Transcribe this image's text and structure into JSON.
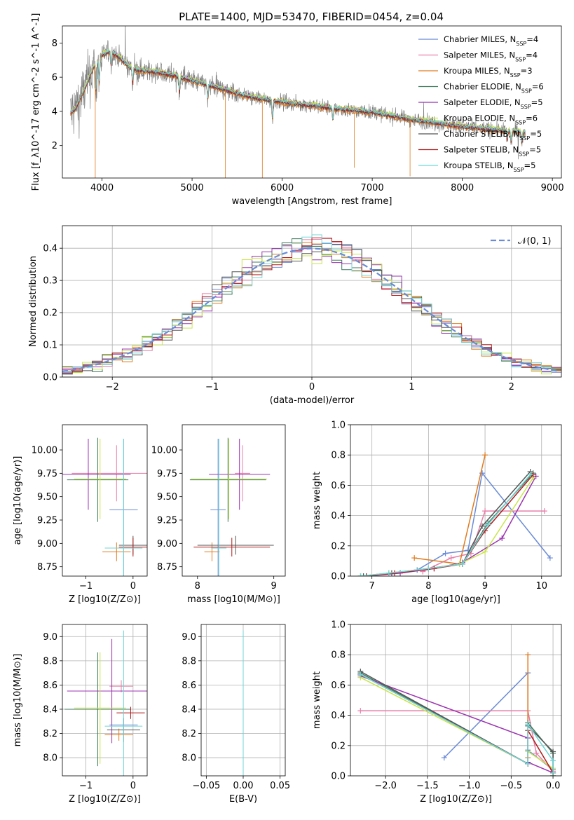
{
  "figure": {
    "title": "PLATE=1400, MJD=53470, FIBERID=0454, z=0.04"
  },
  "colors": {
    "Chabrier MILES": "#6a8bd6",
    "Salpeter MILES": "#e87fa8",
    "Kroupa MILES": "#e07b1e",
    "Chabrier ELODIE": "#3f7a5e",
    "Salpeter ELODIE": "#9b33b0",
    "Kroupa ELODIE": "#c8e64a",
    "Chabrier STELIB": "#555555",
    "Salpeter STELIB": "#b01c1c",
    "Kroupa STELIB": "#6fd6d6",
    "data": "#808080"
  },
  "chart_data": [
    {
      "id": "spectrum",
      "type": "line",
      "xlabel": "wavelength [Angstrom, rest frame]",
      "ylabel": "Flux [f_λ10^-17 erg cm^-2 s^-1 A^-1]",
      "xlim": [
        3560,
        9100
      ],
      "ylim": [
        0.1,
        9.0
      ],
      "xticks": [
        4000,
        5000,
        6000,
        7000,
        8000,
        9000
      ],
      "yticks": [
        2,
        4,
        6,
        8
      ],
      "grid": false,
      "legend_position": "top-right",
      "legend": [
        {
          "name": "Chabrier MILES",
          "nssp": "4"
        },
        {
          "name": "Salpeter MILES",
          "nssp": "4"
        },
        {
          "name": "Kroupa MILES",
          "nssp": "3"
        },
        {
          "name": "Chabrier ELODIE",
          "nssp": "6"
        },
        {
          "name": "Salpeter ELODIE",
          "nssp": "5"
        },
        {
          "name": "Kroupa ELODIE",
          "nssp": "6"
        },
        {
          "name": "Chabrier STELIB",
          "nssp": "5"
        },
        {
          "name": "Salpeter STELIB",
          "nssp": "5"
        },
        {
          "name": "Kroupa STELIB",
          "nssp": "5"
        }
      ],
      "continuum": {
        "x": [
          3650,
          3700,
          3800,
          3900,
          4000,
          4100,
          4200,
          4300,
          4400,
          4600,
          4800,
          5000,
          5200,
          5400,
          5600,
          5800,
          6000,
          6200,
          6400,
          6600,
          6800,
          7000,
          7200,
          7400,
          7600,
          7800,
          8000,
          8200,
          8400,
          8600,
          8700
        ],
        "y": [
          3.9,
          4.1,
          5.2,
          6.5,
          7.3,
          7.5,
          7.1,
          6.6,
          6.4,
          6.3,
          6.1,
          5.8,
          5.5,
          5.2,
          4.9,
          4.7,
          4.55,
          4.4,
          4.3,
          4.15,
          4.05,
          3.95,
          3.75,
          3.55,
          3.4,
          3.25,
          3.1,
          3.0,
          2.9,
          2.8,
          2.75
        ]
      },
      "absorption_lines": [
        {
          "x": 3934,
          "depth": 1.8
        },
        {
          "x": 3969,
          "depth": 1.5
        },
        {
          "x": 4102,
          "depth": 0.9
        },
        {
          "x": 4340,
          "depth": 1.0
        },
        {
          "x": 4861,
          "depth": 1.0
        },
        {
          "x": 5175,
          "depth": 0.9
        },
        {
          "x": 5893,
          "depth": 1.2
        },
        {
          "x": 6563,
          "depth": 0.8
        },
        {
          "x": 8498,
          "depth": 0.6
        },
        {
          "x": 8542,
          "depth": 0.7
        },
        {
          "x": 8662,
          "depth": 0.7
        }
      ]
    },
    {
      "id": "residuals",
      "type": "line",
      "xlabel": "(data-model)/error",
      "ylabel": "Normed distribution",
      "xlim": [
        -2.5,
        2.5
      ],
      "ylim": [
        0.0,
        0.47
      ],
      "xticks": [
        -2,
        -1,
        0,
        1,
        2
      ],
      "yticks": [
        0.0,
        0.1,
        0.2,
        0.3,
        0.4
      ],
      "grid": true,
      "legend_position": "top-right",
      "legend": [
        {
          "name": "𝒩(0, 1)"
        }
      ],
      "bin_width": 0.1
    },
    {
      "id": "age_vs_Z",
      "type": "scatter",
      "xlabel": "Z [log10(Z/Z⊙)]",
      "ylabel": "age  [log10(age/yr)]",
      "xlim": [
        -1.5,
        0.3
      ],
      "ylim": [
        8.65,
        10.27
      ],
      "xticks": [
        -1,
        0
      ],
      "yticks": [
        8.75,
        9.0,
        9.25,
        9.5,
        9.75,
        10.0
      ],
      "grid": false,
      "points": [
        {
          "model": "Chabrier MILES",
          "x": -0.2,
          "xerr": 0.3,
          "y": 9.36,
          "yerr": 0.76
        },
        {
          "model": "Salpeter MILES",
          "x": -0.35,
          "xerr": 0.95,
          "y": 9.75,
          "yerr": 0.3
        },
        {
          "model": "Kroupa MILES",
          "x": -0.35,
          "xerr": 0.3,
          "y": 8.91,
          "yerr": 0.1
        },
        {
          "model": "Chabrier ELODIE",
          "x": -0.75,
          "xerr": 0.65,
          "y": 9.68,
          "yerr": 0.45
        },
        {
          "model": "Salpeter ELODIE",
          "x": -0.95,
          "xerr": 0.9,
          "y": 9.74,
          "yerr": 0.38
        },
        {
          "model": "Kroupa ELODIE",
          "x": -0.7,
          "xerr": 0.55,
          "y": 9.69,
          "yerr": 0.43
        },
        {
          "model": "Chabrier STELIB",
          "x": 0.0,
          "xerr": 0.3,
          "y": 8.98,
          "yerr": 0.1
        },
        {
          "model": "Salpeter STELIB",
          "x": 0.0,
          "xerr": 0.3,
          "y": 8.96,
          "yerr": 0.1
        },
        {
          "model": "Kroupa STELIB",
          "x": -0.2,
          "xerr": 0.4,
          "y": 8.95,
          "yerr": 1.17
        }
      ]
    },
    {
      "id": "age_vs_mass",
      "type": "scatter",
      "xlabel": "mass [log10(M/M⊙)]",
      "ylabel": "",
      "xlim": [
        7.8,
        9.15
      ],
      "ylim": [
        8.65,
        10.27
      ],
      "xticks": [
        8,
        9
      ],
      "yticks": [
        8.75,
        9.0,
        9.25,
        9.5,
        9.75,
        10.0
      ],
      "grid": false,
      "points": [
        {
          "model": "Chabrier MILES",
          "x": 8.27,
          "xerr": 0.1,
          "y": 9.36,
          "yerr": 0.76
        },
        {
          "model": "Salpeter MILES",
          "x": 8.59,
          "xerr": 0.1,
          "y": 9.75,
          "yerr": 0.3
        },
        {
          "model": "Kroupa MILES",
          "x": 8.19,
          "xerr": 0.1,
          "y": 8.91,
          "yerr": 0.1
        },
        {
          "model": "Chabrier ELODIE",
          "x": 8.4,
          "xerr": 0.5,
          "y": 9.68,
          "yerr": 0.45
        },
        {
          "model": "Salpeter ELODIE",
          "x": 8.55,
          "xerr": 0.4,
          "y": 9.74,
          "yerr": 0.38
        },
        {
          "model": "Kroupa ELODIE",
          "x": 8.41,
          "xerr": 0.5,
          "y": 9.69,
          "yerr": 0.43
        },
        {
          "model": "Chabrier STELIB",
          "x": 8.5,
          "xerr": 0.5,
          "y": 8.98,
          "yerr": 0.1
        },
        {
          "model": "Salpeter STELIB",
          "x": 8.45,
          "xerr": 0.5,
          "y": 8.96,
          "yerr": 0.1
        },
        {
          "model": "Kroupa STELIB",
          "x": 8.28,
          "xerr": 0.1,
          "y": 8.95,
          "yerr": 1.17
        }
      ]
    },
    {
      "id": "massweight_vs_age",
      "type": "line",
      "xlabel": "age  [log10(age/yr)]",
      "ylabel": "mass weight",
      "xlim": [
        6.62,
        10.35
      ],
      "ylim": [
        0.0,
        1.0
      ],
      "xticks": [
        7,
        8,
        9,
        10
      ],
      "yticks": [
        0.0,
        0.2,
        0.4,
        0.6,
        0.8,
        1.0
      ],
      "grid": true,
      "series": [
        {
          "model": "Chabrier MILES",
          "x": [
            7.8,
            8.3,
            8.7,
            8.95,
            10.15
          ],
          "y": [
            0.04,
            0.15,
            0.17,
            0.68,
            0.12
          ]
        },
        {
          "model": "Salpeter MILES",
          "x": [
            7.9,
            8.4,
            8.75,
            9.0,
            10.05
          ],
          "y": [
            0.03,
            0.12,
            0.15,
            0.43,
            0.43
          ]
        },
        {
          "model": "Kroupa MILES",
          "x": [
            7.75,
            8.55,
            9.0
          ],
          "y": [
            0.12,
            0.08,
            0.8
          ]
        },
        {
          "model": "Chabrier ELODIE",
          "x": [
            6.8,
            7.3,
            8.0,
            8.6,
            9.05,
            9.85
          ],
          "y": [
            0.0,
            0.02,
            0.05,
            0.08,
            0.35,
            0.68
          ]
        },
        {
          "model": "Salpeter ELODIE",
          "x": [
            6.9,
            7.5,
            8.1,
            8.6,
            9.3,
            9.9
          ],
          "y": [
            0.0,
            0.02,
            0.05,
            0.09,
            0.25,
            0.66
          ]
        },
        {
          "model": "Kroupa ELODIE",
          "x": [
            6.8,
            7.3,
            8.0,
            8.55,
            9.0,
            9.85
          ],
          "y": [
            0.0,
            0.02,
            0.05,
            0.08,
            0.16,
            0.65
          ]
        },
        {
          "model": "Chabrier STELIB",
          "x": [
            6.85,
            7.35,
            8.0,
            8.6,
            8.95,
            9.8
          ],
          "y": [
            0.0,
            0.02,
            0.05,
            0.08,
            0.33,
            0.69
          ]
        },
        {
          "model": "Salpeter STELIB",
          "x": [
            6.9,
            7.4,
            8.1,
            8.6,
            9.0,
            9.85
          ],
          "y": [
            0.0,
            0.02,
            0.05,
            0.08,
            0.3,
            0.67
          ]
        },
        {
          "model": "Kroupa STELIB",
          "x": [
            6.8,
            7.3,
            8.0,
            8.6,
            9.05,
            9.8
          ],
          "y": [
            0.0,
            0.02,
            0.05,
            0.08,
            0.34,
            0.67
          ]
        }
      ]
    },
    {
      "id": "mass_vs_Z",
      "type": "scatter",
      "xlabel": "Z [log10(Z/Z⊙)]",
      "ylabel": "mass [log10(M/M⊙)]",
      "xlim": [
        -1.5,
        0.3
      ],
      "ylim": [
        7.85,
        9.1
      ],
      "xticks": [
        -1,
        0
      ],
      "yticks": [
        8.0,
        8.2,
        8.4,
        8.6,
        8.8,
        9.0
      ],
      "grid": true,
      "points": [
        {
          "model": "Chabrier MILES",
          "x": -0.2,
          "xerr": 0.3,
          "y": 8.27,
          "yerr": 0.05
        },
        {
          "model": "Salpeter MILES",
          "x": -0.25,
          "xerr": 0.25,
          "y": 8.59,
          "yerr": 0.05
        },
        {
          "model": "Kroupa MILES",
          "x": -0.3,
          "xerr": 0.3,
          "y": 8.19,
          "yerr": 0.05
        },
        {
          "model": "Chabrier ELODIE",
          "x": -0.75,
          "xerr": 0.7,
          "y": 8.4,
          "yerr": 0.47
        },
        {
          "model": "Salpeter ELODIE",
          "x": -0.45,
          "xerr": 0.95,
          "y": 8.55,
          "yerr": 0.43
        },
        {
          "model": "Kroupa ELODIE",
          "x": -0.7,
          "xerr": 0.55,
          "y": 8.41,
          "yerr": 0.46
        },
        {
          "model": "Chabrier STELIB",
          "x": -0.2,
          "xerr": 0.35,
          "y": 8.23,
          "yerr": 0.1
        },
        {
          "model": "Salpeter STELIB",
          "x": -0.05,
          "xerr": 0.3,
          "y": 8.37,
          "yerr": 0.05
        },
        {
          "model": "Kroupa STELIB",
          "x": -0.2,
          "xerr": 0.4,
          "y": 8.26,
          "yerr": 0.79
        }
      ]
    },
    {
      "id": "mass_vs_EBV",
      "type": "scatter",
      "xlabel": "E(B-V)",
      "ylabel": "",
      "xlim": [
        -0.057,
        0.057
      ],
      "ylim": [
        7.85,
        9.1
      ],
      "xticks": [
        -0.05,
        0.0,
        0.05
      ],
      "yticks": [
        8.0,
        8.2,
        8.4,
        8.6,
        8.8,
        9.0
      ],
      "grid": true,
      "points": [
        {
          "model": "Chabrier MILES",
          "x": 0.0,
          "xerr": 0.0,
          "y": 8.27,
          "yerr": 0.05
        },
        {
          "model": "Salpeter MILES",
          "x": 0.0,
          "xerr": 0.0,
          "y": 8.59,
          "yerr": 0.05
        },
        {
          "model": "Kroupa MILES",
          "x": 0.0,
          "xerr": 0.0,
          "y": 8.19,
          "yerr": 0.05
        },
        {
          "model": "Chabrier ELODIE",
          "x": 0.0,
          "xerr": 0.0,
          "y": 8.4,
          "yerr": 0.47
        },
        {
          "model": "Salpeter ELODIE",
          "x": 0.0,
          "xerr": 0.0,
          "y": 8.55,
          "yerr": 0.43
        },
        {
          "model": "Kroupa ELODIE",
          "x": 0.0,
          "xerr": 0.0,
          "y": 8.41,
          "yerr": 0.46
        },
        {
          "model": "Chabrier STELIB",
          "x": 0.0,
          "xerr": 0.0,
          "y": 8.23,
          "yerr": 0.1
        },
        {
          "model": "Salpeter STELIB",
          "x": 0.0,
          "xerr": 0.0,
          "y": 8.37,
          "yerr": 0.05
        },
        {
          "model": "Kroupa STELIB",
          "x": 0.0,
          "xerr": 0.0,
          "y": 8.26,
          "yerr": 0.79
        }
      ]
    },
    {
      "id": "massweight_vs_Z",
      "type": "line",
      "xlabel": "Z [log10(Z/Z⊙)]",
      "ylabel": "mass weight",
      "xlim": [
        -2.42,
        0.1
      ],
      "ylim": [
        0.0,
        1.0
      ],
      "xticks": [
        -2.0,
        -1.5,
        -1.0,
        -0.5,
        0.0
      ],
      "yticks": [
        0.0,
        0.2,
        0.4,
        0.6,
        0.8,
        1.0
      ],
      "grid": true,
      "series": [
        {
          "model": "Chabrier MILES",
          "x": [
            -1.3,
            -0.3,
            -0.3,
            0.0
          ],
          "y": [
            0.12,
            0.68,
            0.17,
            0.04
          ]
        },
        {
          "model": "Salpeter MILES",
          "x": [
            -2.3,
            -0.3,
            -0.2,
            0.0
          ],
          "y": [
            0.43,
            0.43,
            0.15,
            0.03
          ]
        },
        {
          "model": "Kroupa MILES",
          "x": [
            -0.3,
            -0.3,
            -0.3
          ],
          "y": [
            0.8,
            0.12,
            0.08
          ]
        },
        {
          "model": "Chabrier ELODIE",
          "x": [
            -2.3,
            -0.3,
            -0.3,
            0.0,
            0.0
          ],
          "y": [
            0.68,
            0.08,
            0.35,
            0.15,
            0.02
          ]
        },
        {
          "model": "Salpeter ELODIE",
          "x": [
            -2.3,
            -0.3,
            -0.3,
            0.0
          ],
          "y": [
            0.66,
            0.25,
            0.09,
            0.02
          ]
        },
        {
          "model": "Kroupa ELODIE",
          "x": [
            -2.3,
            -0.3,
            -0.3,
            0.0,
            0.0
          ],
          "y": [
            0.65,
            0.08,
            0.16,
            0.05,
            0.0
          ]
        },
        {
          "model": "Chabrier STELIB",
          "x": [
            -2.3,
            -0.3,
            -0.3,
            0.0,
            0.0
          ],
          "y": [
            0.69,
            0.08,
            0.33,
            0.16,
            0.0
          ]
        },
        {
          "model": "Salpeter STELIB",
          "x": [
            -2.3,
            -0.3,
            -0.3,
            0.0
          ],
          "y": [
            0.67,
            0.08,
            0.3,
            0.02
          ]
        },
        {
          "model": "Kroupa STELIB",
          "x": [
            -2.3,
            -0.3,
            -0.3,
            0.0,
            0.0
          ],
          "y": [
            0.67,
            0.08,
            0.34,
            0.1,
            0.02
          ]
        }
      ]
    }
  ]
}
